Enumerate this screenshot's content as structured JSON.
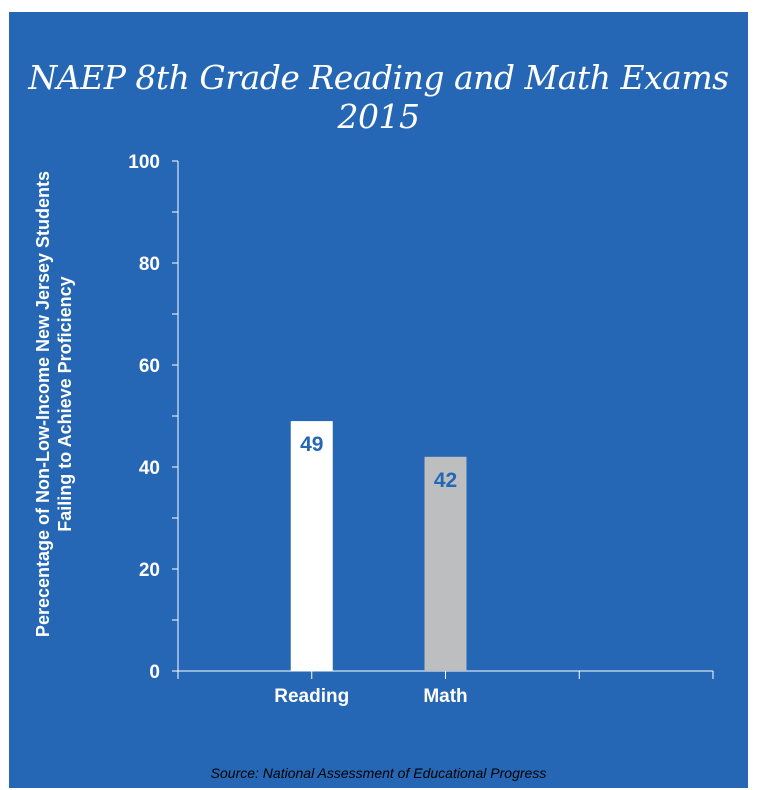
{
  "colors": {
    "background": "#2567b4",
    "axis": "#ffffff",
    "label_text": "#ffffff",
    "bar_value_text": "#2567b4"
  },
  "chart_data": {
    "type": "bar",
    "title": "NAEP 8th Grade Reading and Math Exams 2015",
    "ylabel_line1": "Perecentage of Non-Low-Income New Jersey Students",
    "ylabel_line2": "Failing to Achieve Proficiency",
    "xlabel": "",
    "categories": [
      "Reading",
      "Math"
    ],
    "values": [
      49,
      42
    ],
    "bar_colors": [
      "#ffffff",
      "#bcbec0"
    ],
    "ylim": [
      0,
      100
    ],
    "yticks": [
      0,
      20,
      40,
      60,
      80,
      100
    ],
    "grid": false,
    "legend": "none"
  },
  "source": "Source: National Assessment of Educational Progress"
}
